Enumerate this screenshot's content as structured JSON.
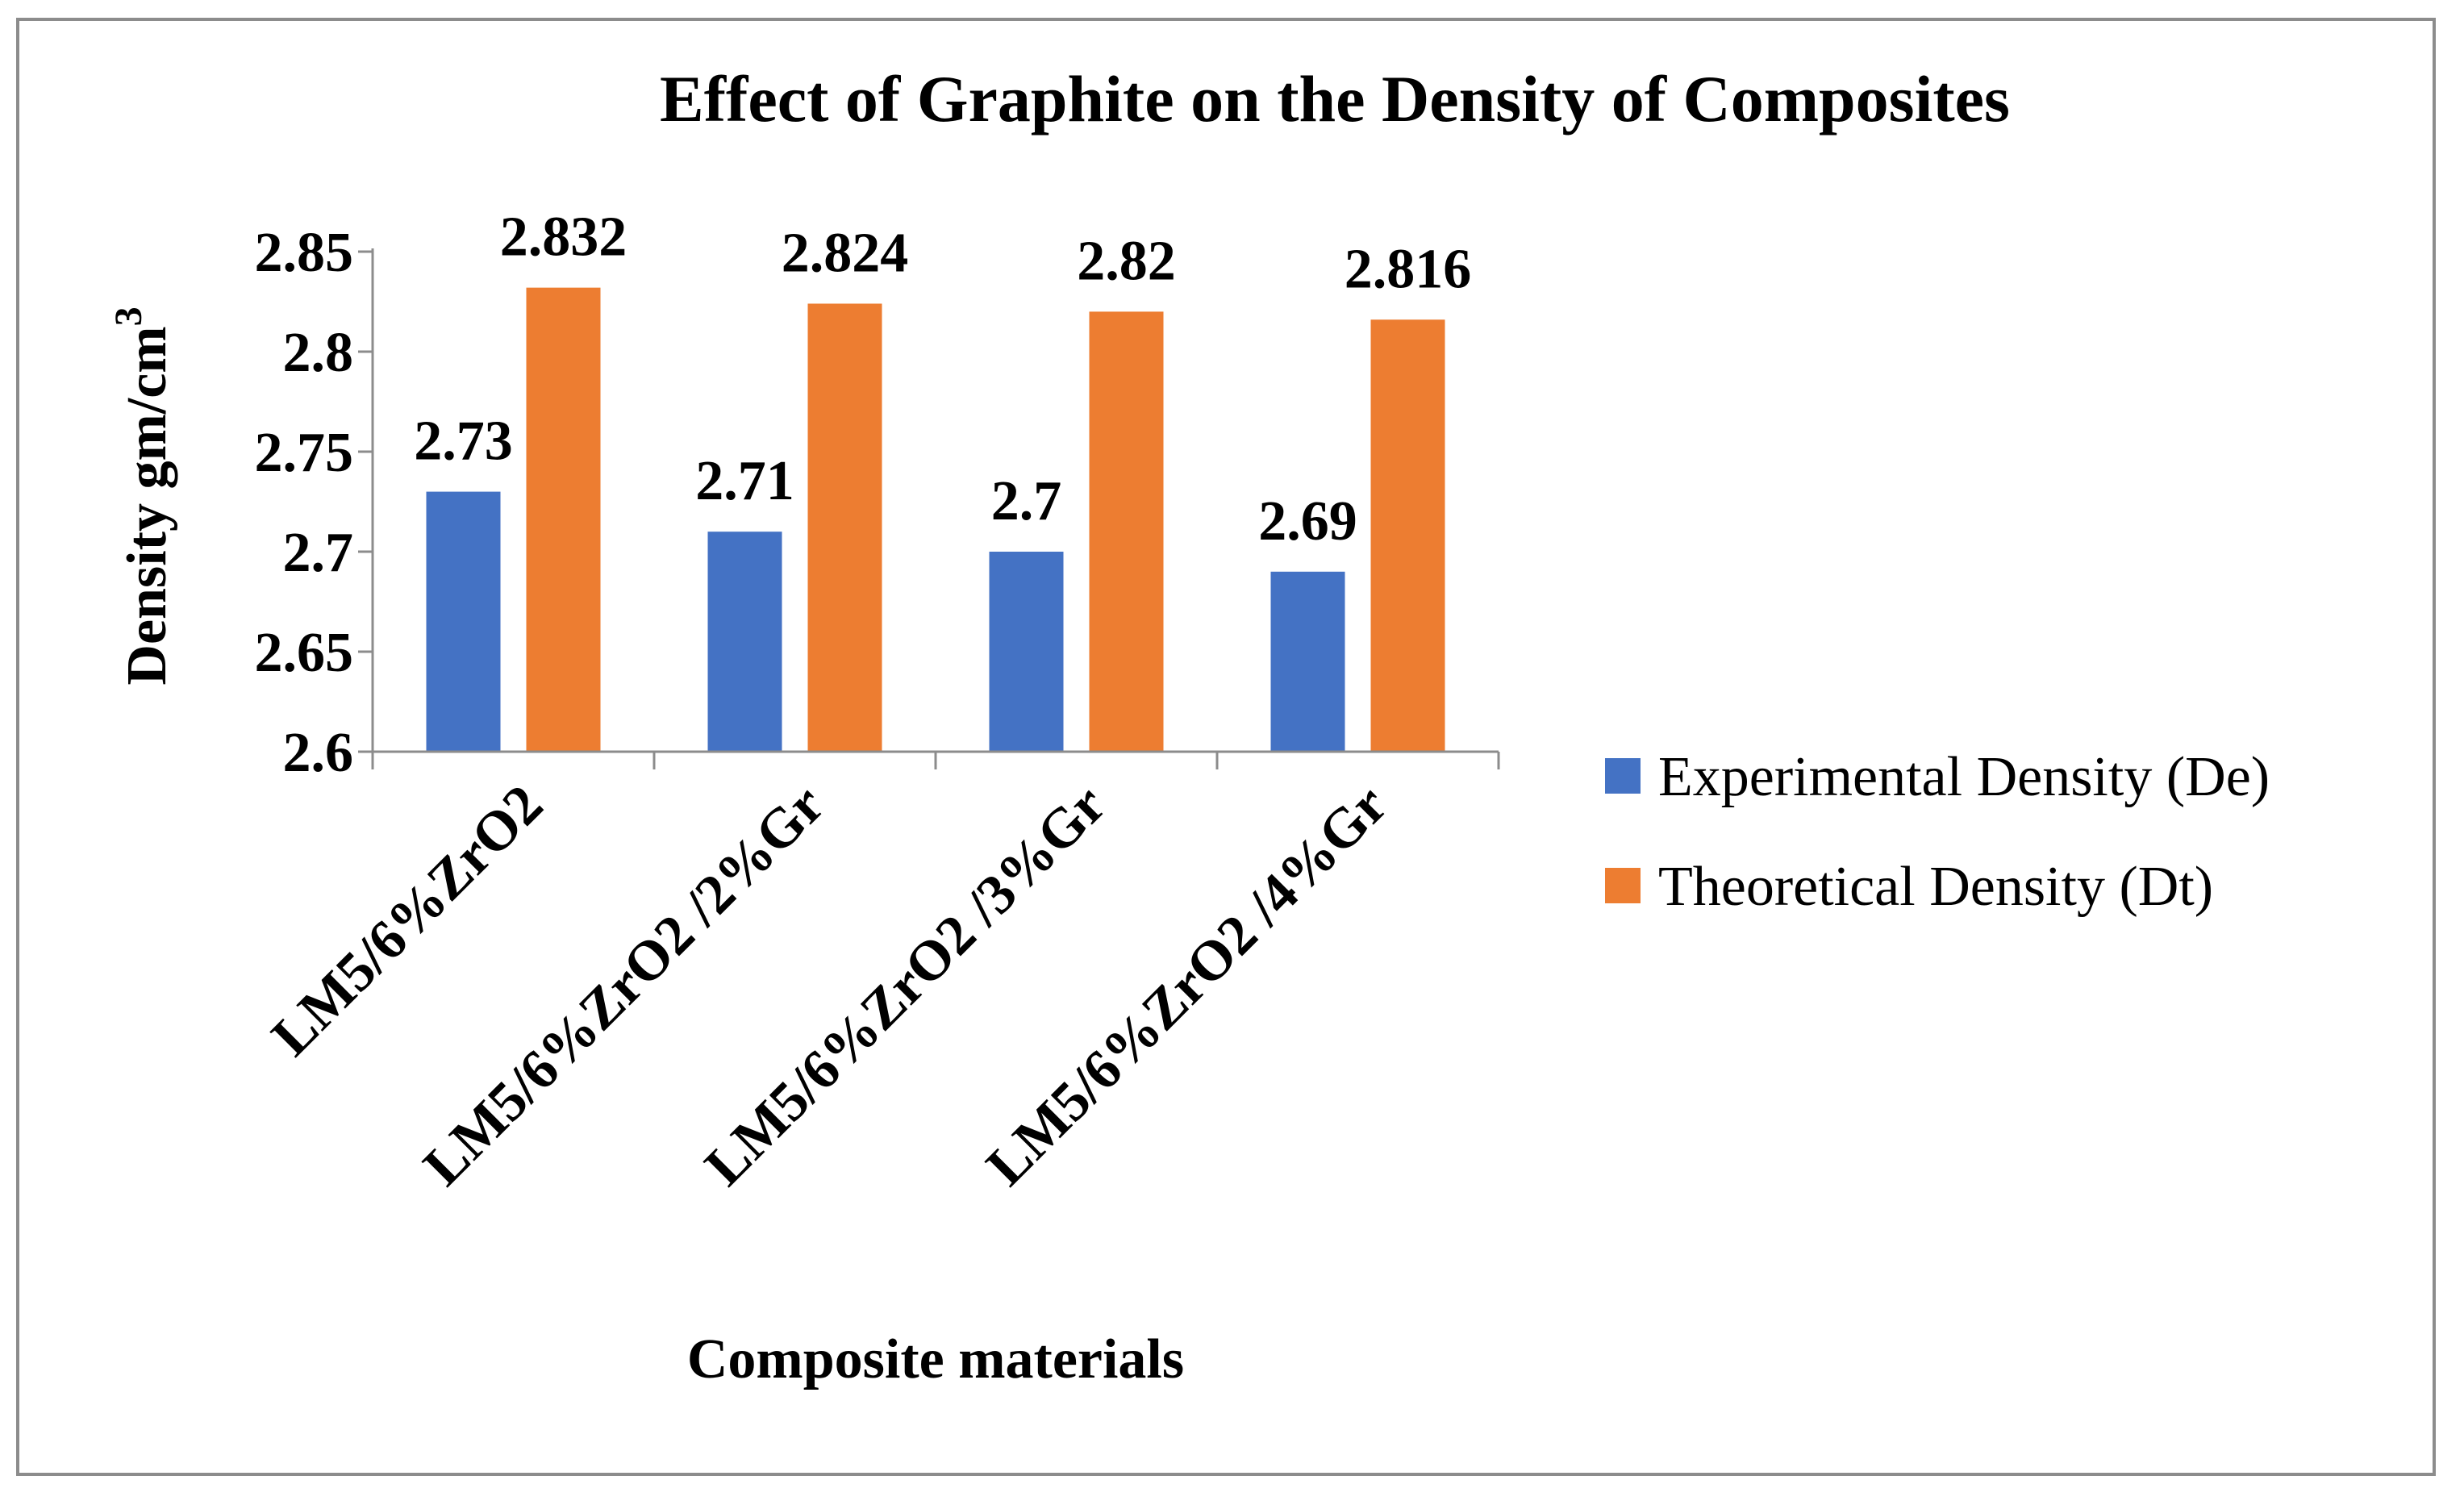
{
  "chart_data": {
    "type": "bar",
    "title": "Effect of Graphite on the Density of Composites",
    "xlabel": "Composite materials",
    "ylabel": "Density gm/cm",
    "ylabel_superscript": "3",
    "categories": [
      "LM5/6%ZrO2",
      "LM5/6%ZrO2 /2%Gr",
      "LM5/6%ZrO2 /3%Gr",
      "LM5/6%ZrO2 /4%Gr"
    ],
    "series": [
      {
        "name": "Experimental Density (De)",
        "color": "#4472C4",
        "values": [
          2.73,
          2.71,
          2.7,
          2.69
        ],
        "labels": [
          "2.73",
          "2.71",
          "2.7",
          "2.69"
        ]
      },
      {
        "name": "Theoretical Density (Dt)",
        "color": "#ED7D31",
        "values": [
          2.832,
          2.824,
          2.82,
          2.816
        ],
        "labels": [
          "2.832",
          "2.824",
          "2.82",
          "2.816"
        ]
      }
    ],
    "ylim": [
      2.6,
      2.85
    ],
    "yticks": [
      "2.6",
      "2.65",
      "2.7",
      "2.75",
      "2.8",
      "2.85"
    ],
    "grid": false,
    "legend_position": "right"
  }
}
